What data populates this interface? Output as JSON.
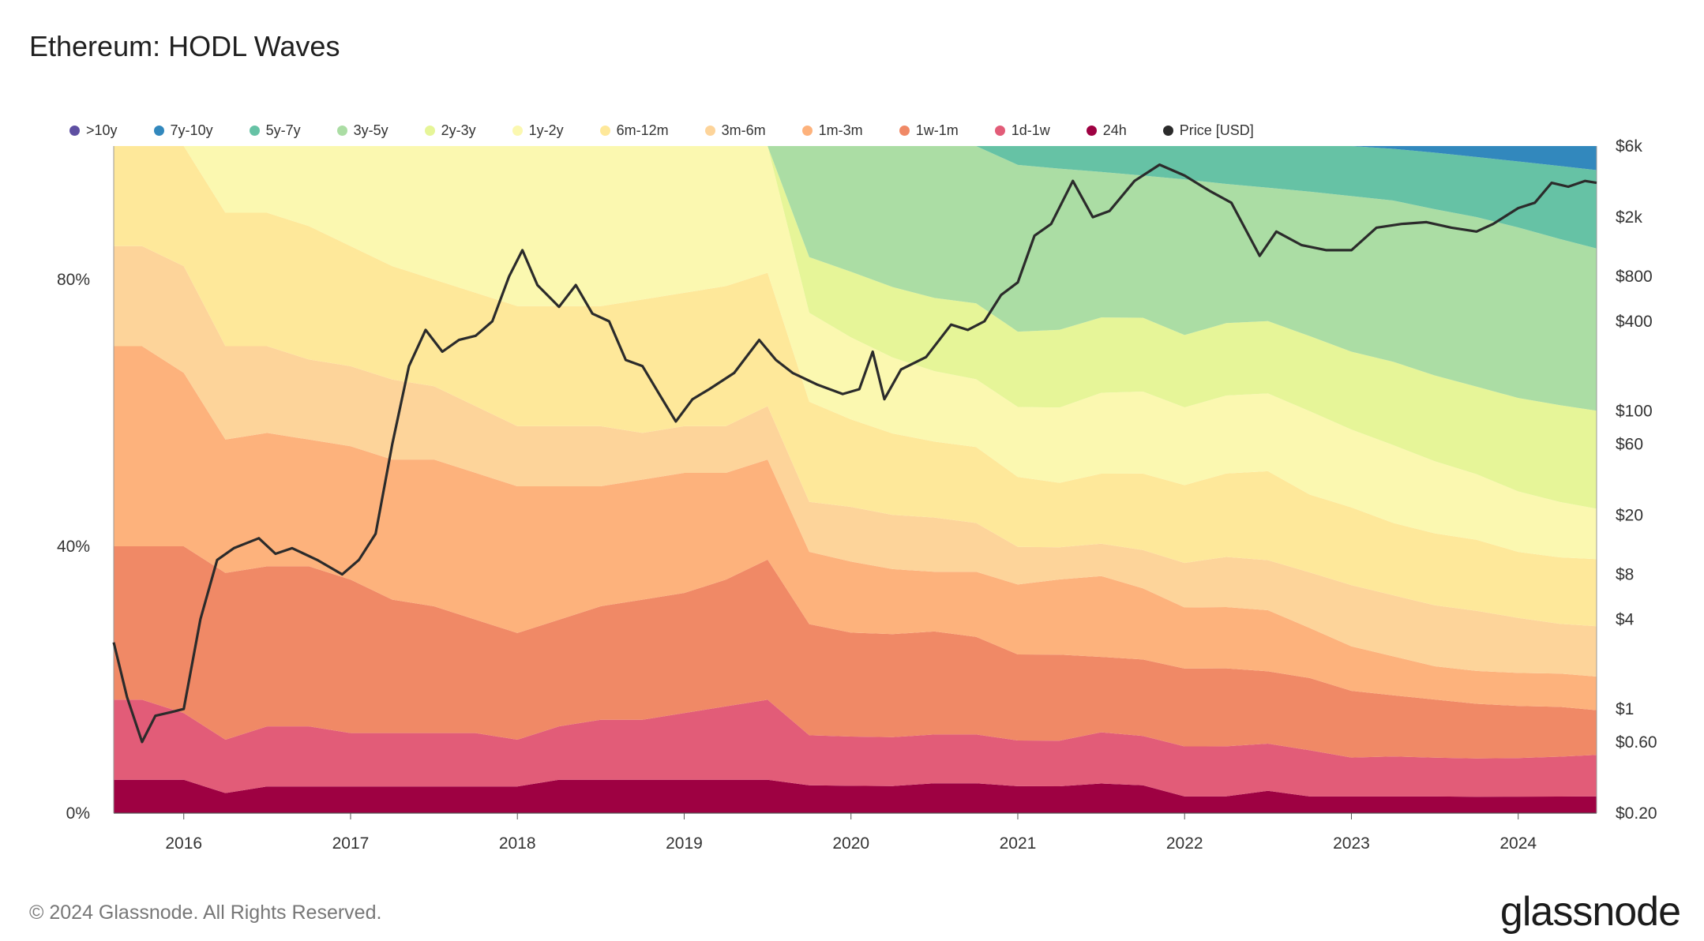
{
  "title": "Ethereum: HODL Waves",
  "footer": "© 2024 Glassnode. All Rights Reserved.",
  "brand": "glassnode",
  "chart_data": {
    "type": "area",
    "title": "Ethereum: HODL Waves",
    "x_ticks": [
      "2016",
      "2017",
      "2018",
      "2019",
      "2020",
      "2021",
      "2022",
      "2023",
      "2024"
    ],
    "x_range": [
      2015.58,
      2024.47
    ],
    "y_left_ticks": [
      "0%",
      "40%",
      "80%"
    ],
    "y_left_range": [
      0,
      100
    ],
    "y_right_ticks": [
      "$0.20",
      "$0.60",
      "$1",
      "$4",
      "$8",
      "$20",
      "$60",
      "$100",
      "$400",
      "$800",
      "$2k",
      "$6k"
    ],
    "y_right_range": [
      0.2,
      6000
    ],
    "y_right_scale": "log",
    "stacking": "stacked-percent",
    "legend_position": "top",
    "dates": [
      2015.58,
      2015.75,
      2016.0,
      2016.25,
      2016.5,
      2016.75,
      2017.0,
      2017.25,
      2017.5,
      2017.75,
      2018.0,
      2018.25,
      2018.5,
      2018.75,
      2019.0,
      2019.25,
      2019.5,
      2019.75,
      2020.0,
      2020.25,
      2020.5,
      2020.75,
      2021.0,
      2021.25,
      2021.5,
      2021.75,
      2022.0,
      2022.25,
      2022.5,
      2022.75,
      2023.0,
      2023.25,
      2023.5,
      2023.75,
      2024.0,
      2024.25,
      2024.47
    ],
    "series": [
      {
        "name": ">10y",
        "color": "#5e4fa2",
        "values": [
          0,
          0,
          0,
          0,
          0,
          0,
          0,
          0,
          0,
          0,
          0,
          0,
          0,
          0,
          0,
          0,
          0,
          0,
          0,
          0,
          0,
          0,
          0,
          0,
          0,
          0,
          0,
          0,
          0,
          0,
          0,
          0,
          0,
          0,
          0,
          0,
          0
        ]
      },
      {
        "name": "7y-10y",
        "color": "#3288bd",
        "values": [
          0,
          0,
          0,
          0,
          0,
          0,
          0,
          0,
          0,
          0,
          0,
          0,
          0,
          0,
          0,
          0,
          0,
          0,
          0,
          0,
          0,
          0,
          0,
          0,
          0,
          0,
          0,
          0,
          0,
          0,
          0,
          0.5,
          1.2,
          2.0,
          2.8,
          3.6,
          4.3
        ]
      },
      {
        "name": "5y-7y",
        "color": "#66c2a5",
        "values": [
          0,
          0,
          0,
          0,
          0,
          0,
          0,
          0,
          0,
          0,
          0,
          0,
          0,
          0,
          0,
          0,
          0,
          0,
          0,
          0,
          0,
          0,
          3.5,
          4.2,
          4.8,
          5.4,
          6.0,
          6.8,
          7.5,
          8.2,
          9.0,
          9.3,
          10.2,
          11.0,
          12.0,
          13.2,
          14.0
        ]
      },
      {
        "name": "3y-5y",
        "color": "#abdda4",
        "values": [
          0,
          0,
          0,
          0,
          0,
          0,
          0,
          0,
          0,
          0,
          0,
          0,
          0,
          0,
          0,
          0,
          0,
          20.0,
          23.0,
          26.0,
          28.0,
          29.0,
          31.0,
          30.0,
          27.0,
          26.0,
          28.0,
          25.0,
          24.0,
          26.0,
          28.0,
          29.0,
          30.0,
          31.0,
          31.0,
          30.0,
          29.0
        ]
      },
      {
        "name": "2y-3y",
        "color": "#e6f598",
        "values": [
          0,
          0,
          0,
          0,
          0,
          0,
          0,
          0,
          0,
          0,
          0,
          0,
          0,
          0,
          0,
          0,
          0,
          10.0,
          12.0,
          13.0,
          13.5,
          14.0,
          14.0,
          14.5,
          14.0,
          13.5,
          13.0,
          13.0,
          13.0,
          13.5,
          14.0,
          15.0,
          15.5,
          16.0,
          17.0,
          17.5,
          17.5
        ]
      },
      {
        "name": "1y-2y",
        "color": "#fbf8b0",
        "values": [
          0,
          0,
          0,
          10.0,
          10.0,
          12.0,
          15.0,
          18.0,
          20.0,
          22.0,
          24.0,
          24.0,
          24.0,
          23.0,
          22.0,
          21.0,
          19.0,
          16.0,
          15.0,
          14.0,
          13.0,
          12.5,
          13.0,
          14.0,
          15.0,
          15.0,
          14.0,
          14.0,
          14.0,
          15.0,
          14.0,
          14.0,
          13.0,
          12.0,
          11.0,
          10.0,
          9.0
        ]
      },
      {
        "name": "6m-12m",
        "color": "#fee89a",
        "values": [
          15.0,
          15.0,
          18.0,
          20.0,
          20.0,
          20.0,
          18.0,
          17.0,
          16.0,
          17.0,
          18.0,
          18.0,
          18.0,
          20.0,
          20.0,
          21.0,
          20.0,
          18.0,
          16.0,
          15.0,
          14.0,
          14.0,
          13.0,
          12.0,
          13.0,
          14.0,
          14.0,
          15.0,
          16.0,
          14.0,
          14.0,
          13.0,
          13.0,
          13.0,
          12.0,
          12.0,
          12.0
        ]
      },
      {
        "name": "3m-6m",
        "color": "#fdd49a",
        "values": [
          15.0,
          15.0,
          16.0,
          14.0,
          13.0,
          12.0,
          12.0,
          12.0,
          11.0,
          10.0,
          9.0,
          9.0,
          9.0,
          7.0,
          7.0,
          7.0,
          8.0,
          9.0,
          10.0,
          10.0,
          10.0,
          9.0,
          7.0,
          6.0,
          6.0,
          7.0,
          8.0,
          9.0,
          9.0,
          10.0,
          11.0,
          11.0,
          11.0,
          11.0,
          10.0,
          9.0,
          9.0
        ]
      },
      {
        "name": "1m-3m",
        "color": "#fdb27c",
        "values": [
          30.0,
          30.0,
          26.0,
          20.0,
          20.0,
          19.0,
          20.0,
          21.0,
          22.0,
          22.0,
          22.0,
          20.0,
          18.0,
          18.0,
          18.0,
          16.0,
          15.0,
          13.0,
          13.0,
          12.0,
          11.0,
          12.0,
          13.0,
          14.0,
          15.0,
          13.0,
          11.0,
          11.0,
          11.0,
          9.0,
          8.0,
          7.0,
          6.0,
          6.0,
          6.0,
          6.0,
          6.0
        ]
      },
      {
        "name": "1w-1m",
        "color": "#f08966",
        "values": [
          23.0,
          23.0,
          25.0,
          25.0,
          24.0,
          24.0,
          23.0,
          20.0,
          19.0,
          17.0,
          16.0,
          16.0,
          17.0,
          18.0,
          18.0,
          19.0,
          21.0,
          20.0,
          19.0,
          19.0,
          19.0,
          18.0,
          16.0,
          16.0,
          14.0,
          14.0,
          14.0,
          14.0,
          13.0,
          13.0,
          12.0,
          11.0,
          10.5,
          10.0,
          9.5,
          9.0,
          8.0
        ]
      },
      {
        "name": "1d-1w",
        "color": "#e25c78",
        "values": [
          12.0,
          12.0,
          10.0,
          8.0,
          9.0,
          9.0,
          8.0,
          8.0,
          8.0,
          8.0,
          7.0,
          8.0,
          9.0,
          9.0,
          10.0,
          11.0,
          12.0,
          9.0,
          9.0,
          9.0,
          9.0,
          9.0,
          8.5,
          8.5,
          9.5,
          9.0,
          9.0,
          9.0,
          8.5,
          8.3,
          7.0,
          7.2,
          7.0,
          7.0,
          7.0,
          7.2,
          7.4
        ]
      },
      {
        "name": "24h",
        "color": "#9e0142",
        "values": [
          5.0,
          5.0,
          5.0,
          3.0,
          4.0,
          4.0,
          4.0,
          4.0,
          4.0,
          4.0,
          4.0,
          5.0,
          5.0,
          5.0,
          5.0,
          5.0,
          5.0,
          5.0,
          5.0,
          5.0,
          5.5,
          5.5,
          5.0,
          5.0,
          5.5,
          5.1,
          3.0,
          3.0,
          4.0,
          3.0,
          3.0,
          3.0,
          3.0,
          3.0,
          3.0,
          3.0,
          3.0
        ]
      }
    ],
    "price_series": {
      "name": "Price [USD]",
      "color": "#2b2b2b",
      "dates": [
        2015.58,
        2015.66,
        2015.75,
        2015.83,
        2015.92,
        2016.0,
        2016.1,
        2016.2,
        2016.3,
        2016.45,
        2016.55,
        2016.65,
        2016.8,
        2016.95,
        2017.05,
        2017.15,
        2017.25,
        2017.35,
        2017.45,
        2017.55,
        2017.65,
        2017.75,
        2017.85,
        2017.95,
        2018.03,
        2018.12,
        2018.25,
        2018.35,
        2018.45,
        2018.55,
        2018.65,
        2018.75,
        2018.85,
        2018.95,
        2019.05,
        2019.15,
        2019.3,
        2019.45,
        2019.55,
        2019.65,
        2019.8,
        2019.95,
        2020.05,
        2020.13,
        2020.2,
        2020.3,
        2020.45,
        2020.6,
        2020.7,
        2020.8,
        2020.9,
        2021.0,
        2021.1,
        2021.2,
        2021.33,
        2021.45,
        2021.55,
        2021.7,
        2021.85,
        2022.0,
        2022.15,
        2022.28,
        2022.45,
        2022.55,
        2022.7,
        2022.85,
        2023.0,
        2023.15,
        2023.3,
        2023.45,
        2023.6,
        2023.75,
        2023.85,
        2024.0,
        2024.1,
        2024.2,
        2024.3,
        2024.4,
        2024.47
      ],
      "values": [
        2.8,
        1.2,
        0.6,
        0.9,
        0.95,
        1.0,
        4.0,
        10.0,
        12.0,
        14.0,
        11.0,
        12.0,
        10.0,
        8.0,
        10.0,
        15.0,
        60.0,
        200.0,
        350.0,
        250.0,
        300.0,
        320.0,
        400.0,
        800.0,
        1200.0,
        700.0,
        500.0,
        700.0,
        450.0,
        400.0,
        220.0,
        200.0,
        130.0,
        85.0,
        120.0,
        140.0,
        180.0,
        300.0,
        220.0,
        180.0,
        150.0,
        130.0,
        140.0,
        250.0,
        120.0,
        190.0,
        230.0,
        380.0,
        350.0,
        400.0,
        600.0,
        730.0,
        1500.0,
        1800.0,
        3500.0,
        2000.0,
        2200.0,
        3500.0,
        4500.0,
        3800.0,
        3000.0,
        2500.0,
        1100.0,
        1600.0,
        1300.0,
        1200.0,
        1200.0,
        1700.0,
        1800.0,
        1850.0,
        1700.0,
        1600.0,
        1800.0,
        2300.0,
        2500.0,
        3400.0,
        3200.0,
        3500.0,
        3400.0
      ]
    }
  }
}
